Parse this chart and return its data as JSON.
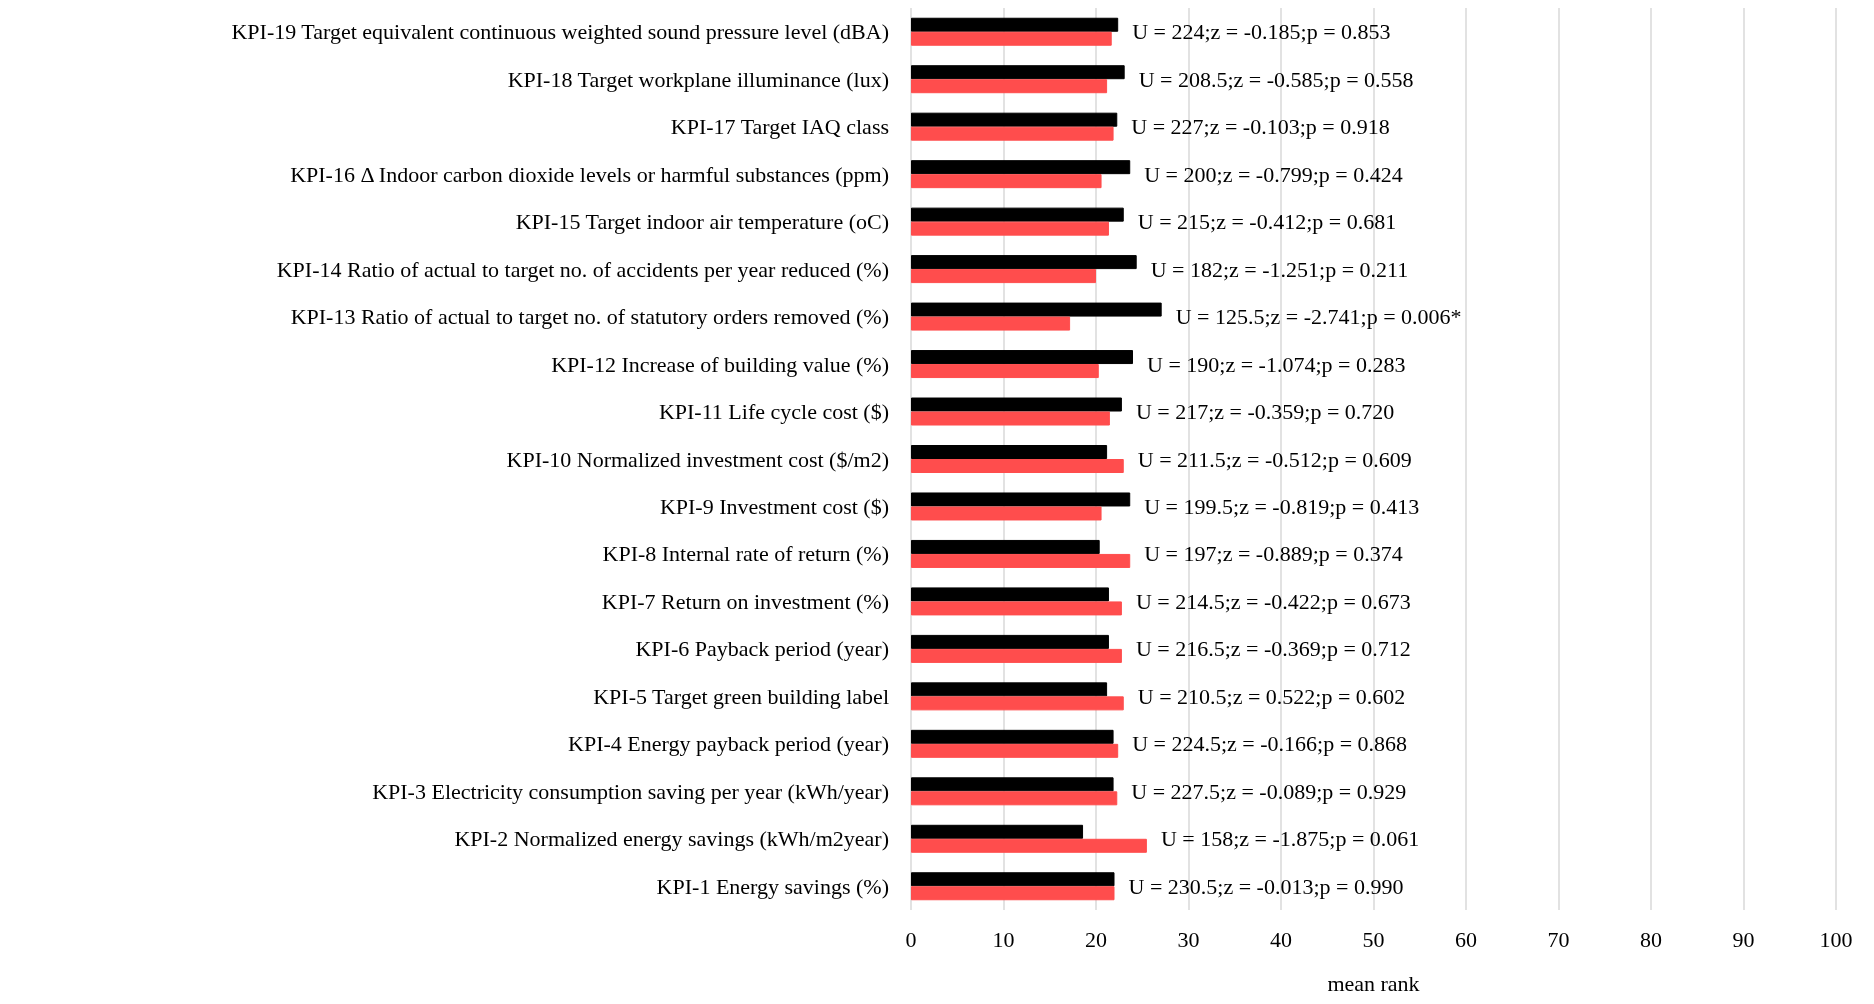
{
  "chart_data": {
    "type": "bar",
    "orientation": "horizontal",
    "xlabel": "mean rank",
    "categories": [
      "KPI-19 Target equivalent continuous weighted sound pressure level (dBA)",
      "KPI-18 Target workplane illuminance (lux)",
      "KPI-17 Target IAQ class",
      "KPI-16 Δ Indoor carbon dioxide levels or harmful substances (ppm)",
      "KPI-15 Target indoor air temperature (oC)",
      "KPI-14 Ratio of actual to target no. of accidents per year reduced (%)",
      "KPI-13 Ratio of actual to target no. of statutory orders removed (%)",
      "KPI-12 Increase of building value (%)",
      "KPI-11 Life cycle cost ($)",
      "KPI-10 Normalized investment cost ($/m2)",
      "KPI-9 Investment cost ($)",
      "KPI-8 Internal rate of return (%)",
      "KPI-7 Return on investment (%)",
      "KPI-6 Payback period (year)",
      "KPI-5 Target green building label",
      "KPI-4 Energy payback period (year)",
      "KPI-3 Electricity consumption saving per year (kWh/year)",
      "KPI-2 Normalized energy savings (kWh/m2year)",
      "KPI-1 Energy savings (%)"
    ],
    "series": [
      {
        "color": "#000000",
        "values": [
          22.4,
          23.1,
          22.3,
          23.7,
          23.0,
          24.4,
          27.1,
          24.0,
          22.8,
          21.2,
          23.7,
          20.4,
          21.4,
          21.4,
          21.2,
          21.9,
          21.9,
          18.6,
          22.0
        ]
      },
      {
        "color": "#ff4d4d",
        "values": [
          21.7,
          21.2,
          21.9,
          20.6,
          21.4,
          20.0,
          17.2,
          20.3,
          21.5,
          23.0,
          20.6,
          23.7,
          22.8,
          22.8,
          23.0,
          22.4,
          22.3,
          25.5,
          22.0
        ]
      }
    ],
    "xlim": [
      0,
      100
    ],
    "xticks": [
      0,
      10,
      20,
      30,
      40,
      50,
      60,
      70,
      80,
      90,
      100
    ],
    "grid": "x",
    "annotations": [
      "U = 224;z = -0.185;p = 0.853",
      "U = 208.5;z = -0.585;p = 0.558",
      "U = 227;z = -0.103;p = 0.918",
      "U = 200;z = -0.799;p = 0.424",
      "U = 215;z = -0.412;p = 0.681",
      "U = 182;z = -1.251;p = 0.211",
      "U = 125.5;z = -2.741;p = 0.006*",
      "U = 190;z = -1.074;p = 0.283",
      "U = 217;z = -0.359;p = 0.720",
      "U = 211.5;z = -0.512;p = 0.609",
      "U = 199.5;z = -0.819;p = 0.413",
      "U = 197;z = -0.889;p = 0.374",
      "U = 214.5;z = -0.422;p = 0.673",
      "U = 216.5;z = -0.369;p = 0.712",
      "U = 210.5;z = 0.522;p = 0.602",
      "U = 224.5;z = -0.166;p = 0.868",
      "U = 227.5;z = -0.089;p = 0.929",
      "U = 158;z = -1.875;p = 0.061",
      "U = 230.5;z = -0.013;p = 0.990"
    ]
  }
}
